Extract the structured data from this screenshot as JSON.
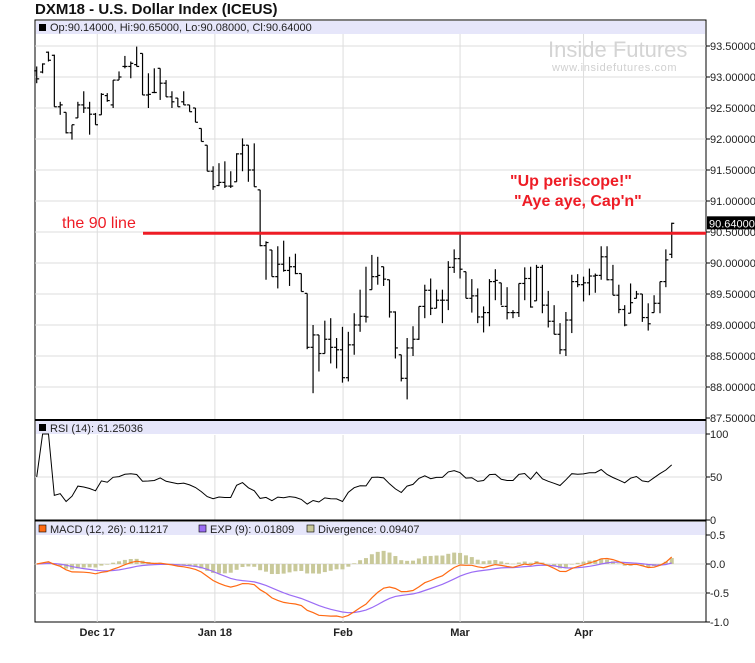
{
  "title": "DXM18 - U.S. Dollar Index (ICEUS)",
  "watermark": {
    "brand": "Inside Futures",
    "url": "www.insidefutures.com"
  },
  "colors": {
    "bars": "#000000",
    "annotation": "#ee1c25",
    "macd": "#ff6a13",
    "exp": "#9b6cf5",
    "divergence": "#c9c99a",
    "header_band": "#e6e6fa",
    "grid": "#dddddd"
  },
  "chart_data": [
    {
      "type": "ohlc",
      "header": "Op:90.14000, Hi:90.65000, Lo:90.08000, Cl:90.64000",
      "last_price_label": "90.64000",
      "ylim": [
        87.5,
        93.75
      ],
      "y_ticks": [
        "93.50000",
        "93.00000",
        "92.50000",
        "92.00000",
        "91.50000",
        "91.00000",
        "90.50000",
        "90.00000",
        "89.50000",
        "89.00000",
        "88.50000",
        "88.00000",
        "87.50000"
      ],
      "y_tick_values": [
        93.5,
        93.0,
        92.5,
        92.0,
        91.5,
        91.0,
        90.5,
        90.0,
        89.5,
        89.0,
        88.5,
        88.0,
        87.5
      ],
      "x_ticks": [
        {
          "label": "Dec 17",
          "index": 10.3
        },
        {
          "label": "Jan 18",
          "index": 30.3
        },
        {
          "label": "Feb",
          "index": 52.1
        },
        {
          "label": "Mar",
          "index": 72
        },
        {
          "label": "Apr",
          "index": 93
        }
      ],
      "annotations": [
        {
          "text": "the 90 line"
        },
        {
          "text": "\"Up periscope!\""
        },
        {
          "text": "\"Aye aye, Cap'n\""
        }
      ],
      "horizontal_line": {
        "value": 90.48,
        "start_index": 18
      },
      "ohlc": [
        [
          93.1,
          93.17,
          92.9,
          92.97
        ],
        [
          93.08,
          93.22,
          93.06,
          93.21
        ],
        [
          93.4,
          93.41,
          93.25,
          93.27
        ],
        [
          93.35,
          93.36,
          92.52,
          92.52
        ],
        [
          92.52,
          92.6,
          92.39,
          92.55
        ],
        [
          92.43,
          92.43,
          92.09,
          92.1
        ],
        [
          92.1,
          92.23,
          91.99,
          92.23
        ],
        [
          92.34,
          92.6,
          92.34,
          92.55
        ],
        [
          92.55,
          92.77,
          92.42,
          92.5
        ],
        [
          92.5,
          92.6,
          92.07,
          92.4
        ],
        [
          92.4,
          92.42,
          92.23,
          92.23
        ],
        [
          92.39,
          92.74,
          92.39,
          92.72
        ],
        [
          92.7,
          92.74,
          92.6,
          92.62
        ],
        [
          92.55,
          92.95,
          92.5,
          92.95
        ],
        [
          92.95,
          93.09,
          92.95,
          93.0
        ],
        [
          93.17,
          93.34,
          93.14,
          93.17
        ],
        [
          93.17,
          93.25,
          92.98,
          93.22
        ],
        [
          93.2,
          93.49,
          93.17,
          93.17
        ],
        [
          93.38,
          93.38,
          92.71,
          92.71
        ],
        [
          92.71,
          93.06,
          92.5,
          92.72
        ],
        [
          92.75,
          93.14,
          92.74,
          92.75
        ],
        [
          93.14,
          93.14,
          92.63,
          92.9
        ],
        [
          92.9,
          92.95,
          92.68,
          92.68
        ],
        [
          92.68,
          92.77,
          92.5,
          92.6
        ],
        [
          92.66,
          92.66,
          92.52,
          92.52
        ],
        [
          92.6,
          92.77,
          92.55,
          92.55
        ],
        [
          92.55,
          92.55,
          92.44,
          92.44
        ],
        [
          92.5,
          92.5,
          92.27,
          92.27
        ],
        [
          92.17,
          92.17,
          91.96,
          91.96
        ],
        [
          91.9,
          91.9,
          91.48,
          91.48
        ],
        [
          91.48,
          91.56,
          91.18,
          91.23
        ],
        [
          91.25,
          91.61,
          91.24,
          91.3
        ],
        [
          91.3,
          91.64,
          91.21,
          91.24
        ],
        [
          91.24,
          91.48,
          91.21,
          91.24
        ],
        [
          91.31,
          91.77,
          91.31,
          91.76
        ],
        [
          91.76,
          92.01,
          91.48,
          91.9
        ],
        [
          91.9,
          91.9,
          91.31,
          91.5
        ],
        [
          91.5,
          91.93,
          91.23,
          91.23
        ],
        [
          91.18,
          91.18,
          90.27,
          90.28
        ],
        [
          90.28,
          90.35,
          89.73,
          90.33
        ],
        [
          90.21,
          90.21,
          89.78,
          89.78
        ],
        [
          89.78,
          90.27,
          89.59,
          89.98
        ],
        [
          89.98,
          90.36,
          89.86,
          89.88
        ],
        [
          89.88,
          90.1,
          89.63,
          89.94
        ],
        [
          89.94,
          90.15,
          89.82,
          89.83
        ],
        [
          89.83,
          89.83,
          89.54,
          89.54
        ],
        [
          89.51,
          89.51,
          88.61,
          88.64
        ],
        [
          88.64,
          89.0,
          87.9,
          88.84
        ],
        [
          88.84,
          88.84,
          88.25,
          88.54
        ],
        [
          88.54,
          89.07,
          88.54,
          88.77
        ],
        [
          88.77,
          89.11,
          88.38,
          88.64
        ],
        [
          88.64,
          88.79,
          88.3,
          88.6
        ],
        [
          88.6,
          88.97,
          88.07,
          88.15
        ],
        [
          88.15,
          88.89,
          88.09,
          88.68
        ],
        [
          88.68,
          89.19,
          88.52,
          89.0
        ],
        [
          89.0,
          89.57,
          88.89,
          89.14
        ],
        [
          89.14,
          89.94,
          89.04,
          89.13
        ],
        [
          89.57,
          90.13,
          89.57,
          89.78
        ],
        [
          89.78,
          90.1,
          89.65,
          89.8
        ],
        [
          89.94,
          89.94,
          89.63,
          89.74
        ],
        [
          89.73,
          89.73,
          89.12,
          89.21
        ],
        [
          89.21,
          89.22,
          88.46,
          88.63
        ],
        [
          88.52,
          88.52,
          88.09,
          88.14
        ],
        [
          88.14,
          88.79,
          87.8,
          88.63
        ],
        [
          88.63,
          88.98,
          88.5,
          88.77
        ],
        [
          88.77,
          89.3,
          88.76,
          89.3
        ],
        [
          89.3,
          89.65,
          89.11,
          89.56
        ],
        [
          89.56,
          89.75,
          89.16,
          89.27
        ],
        [
          89.27,
          89.57,
          89.27,
          89.4
        ],
        [
          89.4,
          89.57,
          89.03,
          89.4
        ],
        [
          89.4,
          90.03,
          89.24,
          89.93
        ],
        [
          89.93,
          90.22,
          89.84,
          90.07
        ],
        [
          90.07,
          90.48,
          89.75,
          89.9
        ],
        [
          89.86,
          89.86,
          89.43,
          89.43
        ],
        [
          89.43,
          89.74,
          89.2,
          89.47
        ],
        [
          89.47,
          89.59,
          89.03,
          89.13
        ],
        [
          89.13,
          89.3,
          88.88,
          89.2
        ],
        [
          89.2,
          89.74,
          88.98,
          89.7
        ],
        [
          89.7,
          89.9,
          89.4,
          89.72
        ],
        [
          89.68,
          89.68,
          89.32,
          89.3
        ],
        [
          89.3,
          89.61,
          89.09,
          89.2
        ],
        [
          89.2,
          89.24,
          89.11,
          89.2
        ],
        [
          89.2,
          89.67,
          89.13,
          89.67
        ],
        [
          89.67,
          89.93,
          89.4,
          89.75
        ],
        [
          89.75,
          89.94,
          89.28,
          89.29
        ],
        [
          89.39,
          89.97,
          89.39,
          89.93
        ],
        [
          89.93,
          89.97,
          89.19,
          89.32
        ],
        [
          89.32,
          89.55,
          88.96,
          89.06
        ],
        [
          89.06,
          89.32,
          88.85,
          88.85
        ],
        [
          88.85,
          89.03,
          88.53,
          88.6
        ],
        [
          88.6,
          89.21,
          88.5,
          89.08
        ],
        [
          89.08,
          89.81,
          88.87,
          89.7
        ],
        [
          89.7,
          89.82,
          89.61,
          89.65
        ],
        [
          89.65,
          89.78,
          89.38,
          89.68
        ],
        [
          89.68,
          89.91,
          89.48,
          89.79
        ],
        [
          89.79,
          89.83,
          89.52,
          89.8
        ],
        [
          89.8,
          90.27,
          89.73,
          90.1
        ],
        [
          90.1,
          90.27,
          89.72,
          89.73
        ],
        [
          89.73,
          89.97,
          89.48,
          89.48
        ],
        [
          89.48,
          89.65,
          89.19,
          89.25
        ],
        [
          89.25,
          89.32,
          88.98,
          89.0
        ],
        [
          89.19,
          89.67,
          89.19,
          89.36
        ],
        [
          89.43,
          89.55,
          89.43,
          89.5
        ],
        [
          89.5,
          89.5,
          89.05,
          89.12
        ],
        [
          89.12,
          89.35,
          88.91,
          89.02
        ],
        [
          89.2,
          89.48,
          89.2,
          89.35
        ],
        [
          89.35,
          89.7,
          89.19,
          89.7
        ],
        [
          89.7,
          90.22,
          89.61,
          90.05
        ],
        [
          90.14,
          90.65,
          90.08,
          90.64
        ]
      ]
    },
    {
      "type": "line",
      "header": "RSI (14): 61.25036",
      "ylim": [
        0,
        100
      ],
      "y_ticks": [
        "100",
        "50",
        "0"
      ],
      "y_tick_values": [
        100,
        50,
        0
      ]
    },
    {
      "type": "line+bar",
      "legend": [
        {
          "name": "MACD (12, 26): 0.11217"
        },
        {
          "name": "EXP (9): 0.01809"
        },
        {
          "name": "Divergence: 0.09407"
        }
      ],
      "ylim": [
        -1.0,
        0.5
      ],
      "y_ticks": [
        "0.5",
        "0.0",
        "-0.5",
        "-1.0"
      ],
      "y_tick_values": [
        0.5,
        0.0,
        -0.5,
        -1.0
      ]
    }
  ]
}
